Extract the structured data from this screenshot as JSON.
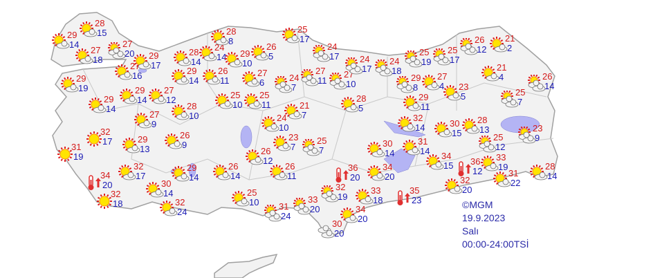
{
  "map": {
    "land_color": "#f2f2f2",
    "border_color": "#a0a0a0",
    "lake_color": "#b4b4f4",
    "max_temp_color": "#d41a1a",
    "min_temp_color": "#1a1ab4"
  },
  "info": {
    "copyright": "©MGM",
    "date": "19.9.2023",
    "day": "Salı",
    "period": "00:00-24:00TSİ"
  },
  "cities": [
    {
      "max": "29",
      "min": "14",
      "icon": "partly-cloudy"
    },
    {
      "max": "28",
      "min": "15",
      "icon": "partly-cloudy"
    },
    {
      "max": "27",
      "min": "18",
      "icon": "partly-cloudy"
    },
    {
      "max": "27",
      "min": "20",
      "icon": "mostly-cloudy"
    },
    {
      "max": "29",
      "min": "19",
      "icon": "partly-cloudy"
    },
    {
      "max": "27",
      "min": "16",
      "icon": "partly-cloudy"
    },
    {
      "max": "29",
      "min": "17",
      "icon": "partly-cloudy"
    },
    {
      "max": "28",
      "min": "14",
      "icon": "partly-cloudy"
    },
    {
      "max": "29",
      "min": "14",
      "icon": "partly-cloudy"
    },
    {
      "max": "24",
      "min": "14",
      "icon": "partly-cloudy"
    },
    {
      "max": "28",
      "min": "8",
      "icon": "partly-cloudy"
    },
    {
      "max": "29",
      "min": "10",
      "icon": "partly-cloudy"
    },
    {
      "max": "26",
      "min": "11",
      "icon": "partly-cloudy"
    },
    {
      "max": "29",
      "min": "14",
      "icon": "partly-cloudy"
    },
    {
      "max": "29",
      "min": "14",
      "icon": "partly-cloudy"
    },
    {
      "max": "27",
      "min": "12",
      "icon": "partly-cloudy"
    },
    {
      "max": "28",
      "min": "10",
      "icon": "partly-cloudy"
    },
    {
      "max": "27",
      "min": "9",
      "icon": "partly-cloudy"
    },
    {
      "max": "25",
      "min": "10",
      "icon": "partly-cloudy"
    },
    {
      "max": "27",
      "min": "6",
      "icon": "partly-cloudy"
    },
    {
      "max": "26",
      "min": "5",
      "icon": "partly-cloudy"
    },
    {
      "max": "25",
      "min": "17",
      "icon": "partly-cloudy"
    },
    {
      "max": "24",
      "min": "17",
      "icon": "mostly-cloudy"
    },
    {
      "max": "27",
      "min": "11",
      "icon": "mostly-cloudy"
    },
    {
      "max": "24",
      "min": "7",
      "icon": "mostly-cloudy"
    },
    {
      "max": "25",
      "min": "11",
      "icon": "partly-cloudy"
    },
    {
      "max": "21",
      "min": "7",
      "icon": "partly-cloudy"
    },
    {
      "max": "24",
      "min": "10",
      "icon": "partly-cloudy"
    },
    {
      "max": "27",
      "min": "10",
      "icon": "mostly-cloudy"
    },
    {
      "max": "24",
      "min": "17",
      "icon": "mostly-cloudy"
    },
    {
      "max": "24",
      "min": "18",
      "icon": "mostly-cloudy"
    },
    {
      "max": "28",
      "min": "5",
      "icon": "partly-cloudy"
    },
    {
      "max": "25",
      "min": "19",
      "icon": "mostly-cloudy"
    },
    {
      "max": "25",
      "min": "17",
      "icon": "mostly-cloudy"
    },
    {
      "max": "26",
      "min": "12",
      "icon": "mostly-cloudy"
    },
    {
      "max": "21",
      "min": "2",
      "icon": "partly-cloudy"
    },
    {
      "max": "29",
      "min": "8",
      "icon": "mostly-cloudy"
    },
    {
      "max": "27",
      "min": "4",
      "icon": "partly-cloudy"
    },
    {
      "max": "29",
      "min": "11",
      "icon": "partly-cloudy"
    },
    {
      "max": "21",
      "min": "4",
      "icon": "partly-cloudy"
    },
    {
      "max": "26",
      "min": "14",
      "icon": "mostly-cloudy"
    },
    {
      "max": "23",
      "min": "5",
      "icon": "partly-cloudy"
    },
    {
      "max": "25",
      "min": "7",
      "icon": "mostly-cloudy"
    },
    {
      "max": "32",
      "min": "14",
      "icon": "partly-cloudy"
    },
    {
      "max": "30",
      "min": "15",
      "icon": "partly-cloudy"
    },
    {
      "max": "28",
      "min": "13",
      "icon": "partly-cloudy"
    },
    {
      "max": "23",
      "min": "9",
      "icon": "mostly-cloudy"
    },
    {
      "max": "25",
      "min": "12",
      "icon": "mostly-cloudy"
    },
    {
      "max": "31",
      "min": "14",
      "icon": "partly-cloudy"
    },
    {
      "max": "34",
      "min": "15",
      "icon": "partly-cloudy"
    },
    {
      "max": "36",
      "min": "12",
      "icon": "hot"
    },
    {
      "max": "33",
      "min": "19",
      "icon": "partly-cloudy"
    },
    {
      "max": "28",
      "min": "14",
      "icon": "partly-cloudy"
    },
    {
      "max": "31",
      "min": "22",
      "icon": "partly-cloudy"
    },
    {
      "max": "32",
      "min": "20",
      "icon": "partly-cloudy"
    },
    {
      "max": "35",
      "min": "23",
      "icon": "hot"
    },
    {
      "max": "34",
      "min": "20",
      "icon": "partly-cloudy"
    },
    {
      "max": "36",
      "min": "20",
      "icon": "hot"
    },
    {
      "max": "30",
      "min": "14",
      "icon": "partly-cloudy"
    },
    {
      "max": "33",
      "min": "18",
      "icon": "partly-cloudy"
    },
    {
      "max": "34",
      "min": "20",
      "icon": "partly-cloudy"
    },
    {
      "max": "32",
      "min": "19",
      "icon": "mostly-cloudy"
    },
    {
      "max": "30",
      "min": "20",
      "icon": "cloudy"
    },
    {
      "max": "33",
      "min": "20",
      "icon": "mostly-cloudy"
    },
    {
      "max": "31",
      "min": "24",
      "icon": "mostly-cloudy"
    },
    {
      "max": "25",
      "min": "10",
      "icon": "partly-cloudy"
    },
    {
      "max": "26",
      "min": "11",
      "icon": "partly-cloudy"
    },
    {
      "max": "26",
      "min": "14",
      "icon": "partly-cloudy"
    },
    {
      "max": "26",
      "min": "12",
      "icon": "partly-cloudy"
    },
    {
      "max": "23",
      "min": "7",
      "icon": "partly-cloudy"
    },
    {
      "max": "25",
      "min": "7",
      "icon": "mostly-cloudy"
    },
    {
      "max": "32",
      "min": "17",
      "icon": "sunny"
    },
    {
      "max": "31",
      "min": "19",
      "icon": "sunny"
    },
    {
      "max": "29",
      "min": "13",
      "icon": "partly-cloudy"
    },
    {
      "max": "26",
      "min": "9",
      "icon": "partly-cloudy"
    },
    {
      "max": "34",
      "min": "20",
      "icon": "hot"
    },
    {
      "max": "32",
      "min": "17",
      "icon": "partly-cloudy"
    },
    {
      "max": "29",
      "min": "14",
      "icon": "partly-cloudy"
    },
    {
      "max": "30",
      "min": "14",
      "icon": "partly-cloudy"
    },
    {
      "max": "32",
      "min": "24",
      "icon": "partly-cloudy"
    },
    {
      "max": "32",
      "min": "18",
      "icon": "sunny"
    }
  ]
}
